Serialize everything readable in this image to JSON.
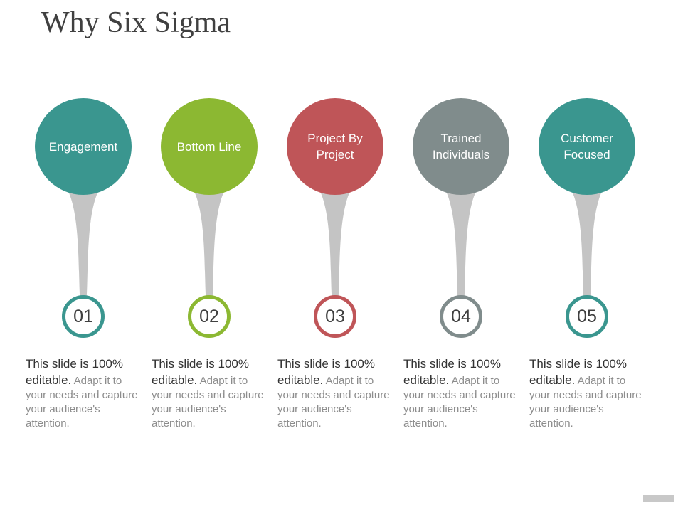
{
  "title": "Why Six Sigma",
  "items": [
    {
      "label": "Engagement",
      "number": "01",
      "color": "#3a968f",
      "desc_lead": "This slide is 100% editable.",
      "desc_rest": " Adapt it to your needs and capture your audience's attention."
    },
    {
      "label": "Bottom Line",
      "number": "02",
      "color": "#8cb832",
      "desc_lead": "This slide is 100% editable.",
      "desc_rest": " Adapt it to your needs and capture your audience's attention."
    },
    {
      "label": "Project By Project",
      "number": "03",
      "color": "#bf5558",
      "desc_lead": "This slide is 100% editable.",
      "desc_rest": " Adapt it to your needs and capture your audience's attention."
    },
    {
      "label": "Trained Individuals",
      "number": "04",
      "color": "#808c8c",
      "desc_lead": "This slide is 100% editable.",
      "desc_rest": " Adapt it to your needs and capture your audience's attention."
    },
    {
      "label": "Customer Focused",
      "number": "05",
      "color": "#3a968f",
      "desc_lead": "This slide is 100% editable.",
      "desc_rest": " Adapt it to your needs and capture your audience's attention."
    }
  ],
  "stem_color": "#c4c4c4"
}
